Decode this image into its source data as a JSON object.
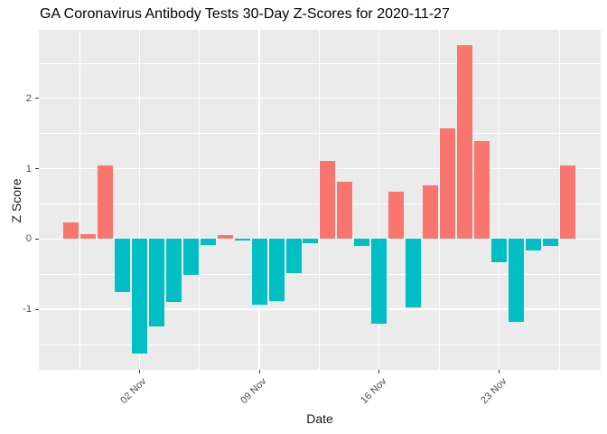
{
  "title": "GA Coronavirus Antibody Tests 30-Day Z-Scores for 2020-11-27",
  "chart_data": {
    "type": "bar",
    "title": "GA Coronavirus Antibody Tests 30-Day Z-Scores for 2020-11-27",
    "xlabel": "Date",
    "ylabel": "Z Score",
    "categories": [
      "2020-10-29",
      "2020-10-30",
      "2020-10-31",
      "2020-11-01",
      "2020-11-02",
      "2020-11-03",
      "2020-11-04",
      "2020-11-05",
      "2020-11-06",
      "2020-11-07",
      "2020-11-08",
      "2020-11-09",
      "2020-11-10",
      "2020-11-11",
      "2020-11-12",
      "2020-11-13",
      "2020-11-14",
      "2020-11-15",
      "2020-11-16",
      "2020-11-17",
      "2020-11-18",
      "2020-11-19",
      "2020-11-20",
      "2020-11-21",
      "2020-11-22",
      "2020-11-23",
      "2020-11-24",
      "2020-11-25",
      "2020-11-26",
      "2020-11-27"
    ],
    "values": [
      0.23,
      0.07,
      1.04,
      -0.75,
      -1.63,
      -1.25,
      -0.9,
      -0.51,
      -0.09,
      0.06,
      -0.02,
      -0.93,
      -0.89,
      -0.49,
      -0.06,
      1.11,
      0.81,
      -0.1,
      -1.2,
      0.67,
      -0.97,
      0.76,
      1.57,
      2.76,
      1.4,
      -0.33,
      -1.18,
      -0.16,
      -0.1,
      1.05
    ],
    "x_ticks": [
      {
        "date": "2020-11-02",
        "label": "02 Nov"
      },
      {
        "date": "2020-11-09",
        "label": "09 Nov"
      },
      {
        "date": "2020-11-16",
        "label": "16 Nov"
      },
      {
        "date": "2020-11-23",
        "label": "23 Nov"
      }
    ],
    "y_ticks": [
      {
        "value": -1,
        "label": "-1"
      },
      {
        "value": 0,
        "label": "0"
      },
      {
        "value": 1,
        "label": "1"
      },
      {
        "value": 2,
        "label": "2"
      }
    ],
    "ylim": [
      -1.86,
      2.98
    ],
    "grid": "major+minor",
    "legend": false,
    "colors": {
      "positive": "#F8766D",
      "negative": "#00BFC4",
      "panel_background": "#EBEBEB",
      "gridline": "#FFFFFF",
      "tick_text": "#4D4D4D",
      "axis_title": "#1A1A1A",
      "title_text": "#000000"
    }
  }
}
